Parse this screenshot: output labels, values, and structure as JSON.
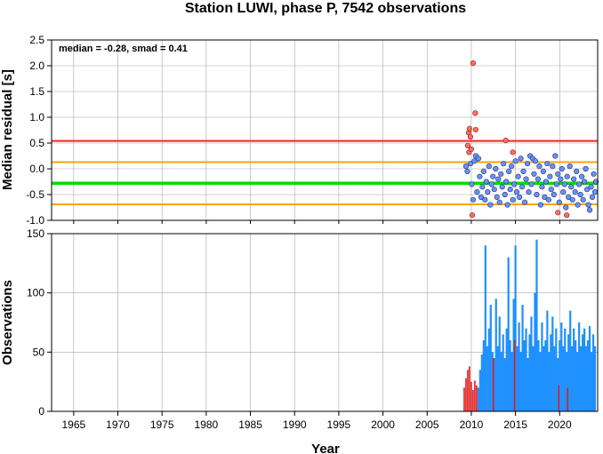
{
  "chart_data": [
    {
      "type": "scatter",
      "title": "Station LUWI, phase P, 7542 observations",
      "annotation": "median = -0.28, smad = 0.41",
      "xlabel": "",
      "ylabel": "Median residual [s]",
      "xlim": [
        1962.5,
        2024.3
      ],
      "ylim": [
        -1.0,
        2.5
      ],
      "yticks": [
        "2.5",
        "2.0",
        "1.5",
        "1.0",
        "0.5",
        "0.0",
        "-0.5",
        "-1.0"
      ],
      "ytick_values": [
        2.5,
        2.0,
        1.5,
        1.0,
        0.5,
        0.0,
        -0.5,
        -1.0
      ],
      "grid": true,
      "reference_lines": [
        {
          "name": "upper-threshold",
          "y": 0.54,
          "color": "#ff2020"
        },
        {
          "name": "upper-band",
          "y": 0.13,
          "color": "#ffa500"
        },
        {
          "name": "median",
          "y": -0.28,
          "color": "#00dd00"
        },
        {
          "name": "lower-band",
          "y": -0.69,
          "color": "#ffa500"
        }
      ],
      "colors": {
        "inlier": "#6495ed",
        "outlier": "#ff6f5e",
        "edge": "#2a2a8a"
      },
      "outliers": [
        {
          "x": 2009.6,
          "y": 0.45
        },
        {
          "x": 2009.7,
          "y": 0.7
        },
        {
          "x": 2009.8,
          "y": 0.78
        },
        {
          "x": 2009.9,
          "y": 0.62
        },
        {
          "x": 2009.75,
          "y": 0.32
        },
        {
          "x": 2010.0,
          "y": 0.38
        },
        {
          "x": 2010.2,
          "y": 2.05
        },
        {
          "x": 2010.45,
          "y": 1.08
        },
        {
          "x": 2010.5,
          "y": 0.76
        },
        {
          "x": 2010.1,
          "y": -0.9
        },
        {
          "x": 2013.9,
          "y": 0.55
        },
        {
          "x": 2014.7,
          "y": 0.32
        },
        {
          "x": 2019.8,
          "y": -0.85
        },
        {
          "x": 2020.8,
          "y": -0.9
        }
      ],
      "series": [
        {
          "name": "",
          "points": [
            {
              "x": 2009.4,
              "y": 0.05
            },
            {
              "x": 2009.55,
              "y": -0.05
            },
            {
              "x": 2009.9,
              "y": 0.1
            },
            {
              "x": 2010.05,
              "y": -0.3
            },
            {
              "x": 2010.2,
              "y": -0.6
            },
            {
              "x": 2010.35,
              "y": 0.15
            },
            {
              "x": 2010.5,
              "y": 0.25
            },
            {
              "x": 2010.65,
              "y": -0.45
            },
            {
              "x": 2010.8,
              "y": 0.2
            },
            {
              "x": 2010.95,
              "y": -0.15
            },
            {
              "x": 2011.1,
              "y": -0.55
            },
            {
              "x": 2011.25,
              "y": -0.35
            },
            {
              "x": 2011.4,
              "y": -0.05
            },
            {
              "x": 2011.55,
              "y": -0.6
            },
            {
              "x": 2011.7,
              "y": -0.25
            },
            {
              "x": 2011.85,
              "y": -0.45
            },
            {
              "x": 2012.0,
              "y": 0.05
            },
            {
              "x": 2012.15,
              "y": -0.7
            },
            {
              "x": 2012.3,
              "y": -0.3
            },
            {
              "x": 2012.45,
              "y": -0.15
            },
            {
              "x": 2012.6,
              "y": -0.4
            },
            {
              "x": 2012.75,
              "y": 0.0
            },
            {
              "x": 2012.9,
              "y": -0.55
            },
            {
              "x": 2013.05,
              "y": -0.2
            },
            {
              "x": 2013.2,
              "y": -0.65
            },
            {
              "x": 2013.35,
              "y": -0.1
            },
            {
              "x": 2013.5,
              "y": -0.35
            },
            {
              "x": 2013.65,
              "y": 0.1
            },
            {
              "x": 2013.8,
              "y": -0.5
            },
            {
              "x": 2013.95,
              "y": -0.25
            },
            {
              "x": 2014.1,
              "y": -0.7
            },
            {
              "x": 2014.25,
              "y": -0.05
            },
            {
              "x": 2014.4,
              "y": -0.4
            },
            {
              "x": 2014.55,
              "y": 0.05
            },
            {
              "x": 2014.7,
              "y": -0.6
            },
            {
              "x": 2014.85,
              "y": -0.3
            },
            {
              "x": 2015.0,
              "y": 0.15
            },
            {
              "x": 2015.15,
              "y": -0.45
            },
            {
              "x": 2015.3,
              "y": -0.15
            },
            {
              "x": 2015.45,
              "y": -0.55
            },
            {
              "x": 2015.6,
              "y": 0.2
            },
            {
              "x": 2015.75,
              "y": -0.35
            },
            {
              "x": 2015.9,
              "y": -0.05
            },
            {
              "x": 2016.05,
              "y": -0.65
            },
            {
              "x": 2016.2,
              "y": -0.2
            },
            {
              "x": 2016.35,
              "y": 0.1
            },
            {
              "x": 2016.5,
              "y": -0.45
            },
            {
              "x": 2016.65,
              "y": 0.25
            },
            {
              "x": 2016.8,
              "y": -0.3
            },
            {
              "x": 2016.95,
              "y": 0.2
            },
            {
              "x": 2017.1,
              "y": -0.1
            },
            {
              "x": 2017.25,
              "y": 0.15
            },
            {
              "x": 2017.4,
              "y": -0.5
            },
            {
              "x": 2017.55,
              "y": -0.2
            },
            {
              "x": 2017.7,
              "y": 0.05
            },
            {
              "x": 2017.85,
              "y": -0.7
            },
            {
              "x": 2018.0,
              "y": -0.35
            },
            {
              "x": 2018.15,
              "y": -0.05
            },
            {
              "x": 2018.3,
              "y": -0.55
            },
            {
              "x": 2018.45,
              "y": -0.25
            },
            {
              "x": 2018.6,
              "y": 0.1
            },
            {
              "x": 2018.75,
              "y": -0.6
            },
            {
              "x": 2018.9,
              "y": -0.15
            },
            {
              "x": 2019.05,
              "y": -0.4
            },
            {
              "x": 2019.2,
              "y": 0.05
            },
            {
              "x": 2019.35,
              "y": -0.5
            },
            {
              "x": 2019.5,
              "y": 0.25
            },
            {
              "x": 2019.65,
              "y": -0.3
            },
            {
              "x": 2019.8,
              "y": -0.1
            },
            {
              "x": 2019.95,
              "y": -0.65
            },
            {
              "x": 2020.1,
              "y": -0.2
            },
            {
              "x": 2020.25,
              "y": 0.0
            },
            {
              "x": 2020.4,
              "y": -0.45
            },
            {
              "x": 2020.55,
              "y": -0.3
            },
            {
              "x": 2020.7,
              "y": -0.75
            },
            {
              "x": 2020.85,
              "y": -0.15
            },
            {
              "x": 2021.0,
              "y": -0.55
            },
            {
              "x": 2021.15,
              "y": 0.05
            },
            {
              "x": 2021.3,
              "y": -0.35
            },
            {
              "x": 2021.45,
              "y": -0.6
            },
            {
              "x": 2021.6,
              "y": -0.2
            },
            {
              "x": 2021.75,
              "y": -0.45
            },
            {
              "x": 2021.9,
              "y": -0.05
            },
            {
              "x": 2022.05,
              "y": -0.7
            },
            {
              "x": 2022.2,
              "y": -0.3
            },
            {
              "x": 2022.35,
              "y": -0.5
            },
            {
              "x": 2022.5,
              "y": -0.15
            },
            {
              "x": 2022.65,
              "y": -0.6
            },
            {
              "x": 2022.8,
              "y": -0.25
            },
            {
              "x": 2022.95,
              "y": 0.0
            },
            {
              "x": 2023.1,
              "y": -0.4
            },
            {
              "x": 2023.25,
              "y": -0.7
            },
            {
              "x": 2023.4,
              "y": -0.8
            },
            {
              "x": 2023.55,
              "y": -0.35
            },
            {
              "x": 2023.7,
              "y": -0.55
            },
            {
              "x": 2023.85,
              "y": -0.1
            },
            {
              "x": 2024.0,
              "y": -0.45
            },
            {
              "x": 2024.1,
              "y": -0.25
            }
          ]
        }
      ]
    },
    {
      "type": "bar",
      "xlabel": "Year",
      "ylabel": "Observations",
      "xlim": [
        1962.5,
        2024.3
      ],
      "ylim": [
        0,
        150
      ],
      "xticks": [
        "1965",
        "1970",
        "1975",
        "1980",
        "1985",
        "1990",
        "1995",
        "2000",
        "2005",
        "2010",
        "2015",
        "2020"
      ],
      "xtick_values": [
        1965,
        1970,
        1975,
        1980,
        1985,
        1990,
        1995,
        2000,
        2005,
        2010,
        2015,
        2020
      ],
      "yticks": [
        "150",
        "100",
        "50",
        "0"
      ],
      "ytick_values": [
        150,
        100,
        50,
        0
      ],
      "grid": true,
      "colors": {
        "bars": "#1e90ff",
        "highlight": "#e31a1c"
      },
      "series": [
        {
          "name": "",
          "points": [
            {
              "x": 2010.8,
              "y": 20
            },
            {
              "x": 2011.0,
              "y": 35
            },
            {
              "x": 2011.2,
              "y": 48
            },
            {
              "x": 2011.4,
              "y": 60
            },
            {
              "x": 2011.6,
              "y": 140
            },
            {
              "x": 2011.8,
              "y": 55
            },
            {
              "x": 2012.0,
              "y": 70
            },
            {
              "x": 2012.2,
              "y": 90
            },
            {
              "x": 2012.4,
              "y": 50
            },
            {
              "x": 2012.6,
              "y": 45
            },
            {
              "x": 2012.8,
              "y": 95
            },
            {
              "x": 2013.0,
              "y": 55
            },
            {
              "x": 2013.2,
              "y": 80
            },
            {
              "x": 2013.4,
              "y": 50
            },
            {
              "x": 2013.6,
              "y": 65
            },
            {
              "x": 2013.8,
              "y": 45
            },
            {
              "x": 2014.0,
              "y": 70
            },
            {
              "x": 2014.2,
              "y": 130
            },
            {
              "x": 2014.4,
              "y": 60
            },
            {
              "x": 2014.6,
              "y": 50
            },
            {
              "x": 2014.8,
              "y": 95
            },
            {
              "x": 2015.0,
              "y": 140
            },
            {
              "x": 2015.2,
              "y": 55
            },
            {
              "x": 2015.4,
              "y": 75
            },
            {
              "x": 2015.6,
              "y": 50
            },
            {
              "x": 2015.8,
              "y": 90
            },
            {
              "x": 2016.0,
              "y": 60
            },
            {
              "x": 2016.2,
              "y": 70
            },
            {
              "x": 2016.4,
              "y": 45
            },
            {
              "x": 2016.6,
              "y": 65
            },
            {
              "x": 2016.8,
              "y": 80
            },
            {
              "x": 2017.0,
              "y": 55
            },
            {
              "x": 2017.2,
              "y": 100
            },
            {
              "x": 2017.4,
              "y": 145
            },
            {
              "x": 2017.6,
              "y": 60
            },
            {
              "x": 2017.8,
              "y": 50
            },
            {
              "x": 2018.0,
              "y": 75
            },
            {
              "x": 2018.2,
              "y": 55
            },
            {
              "x": 2018.4,
              "y": 60
            },
            {
              "x": 2018.6,
              "y": 85
            },
            {
              "x": 2018.8,
              "y": 50
            },
            {
              "x": 2019.0,
              "y": 65
            },
            {
              "x": 2019.2,
              "y": 80
            },
            {
              "x": 2019.4,
              "y": 55
            },
            {
              "x": 2019.6,
              "y": 70
            },
            {
              "x": 2019.8,
              "y": 45
            },
            {
              "x": 2020.0,
              "y": 60
            },
            {
              "x": 2020.2,
              "y": 75
            },
            {
              "x": 2020.4,
              "y": 55
            },
            {
              "x": 2020.6,
              "y": 70
            },
            {
              "x": 2020.8,
              "y": 50
            },
            {
              "x": 2021.0,
              "y": 65
            },
            {
              "x": 2021.2,
              "y": 85
            },
            {
              "x": 2021.4,
              "y": 55
            },
            {
              "x": 2021.6,
              "y": 70
            },
            {
              "x": 2021.8,
              "y": 60
            },
            {
              "x": 2022.0,
              "y": 50
            },
            {
              "x": 2022.2,
              "y": 75
            },
            {
              "x": 2022.4,
              "y": 55
            },
            {
              "x": 2022.6,
              "y": 65
            },
            {
              "x": 2022.8,
              "y": 70
            },
            {
              "x": 2023.0,
              "y": 55
            },
            {
              "x": 2023.2,
              "y": 60
            },
            {
              "x": 2023.4,
              "y": 72
            },
            {
              "x": 2023.6,
              "y": 50
            },
            {
              "x": 2023.8,
              "y": 65
            },
            {
              "x": 2024.0,
              "y": 55
            }
          ]
        },
        {
          "name": "",
          "points": [
            {
              "x": 2009.2,
              "y": 20
            },
            {
              "x": 2009.4,
              "y": 28
            },
            {
              "x": 2009.6,
              "y": 35
            },
            {
              "x": 2009.8,
              "y": 38
            },
            {
              "x": 2010.0,
              "y": 25
            },
            {
              "x": 2010.2,
              "y": 18
            },
            {
              "x": 2010.4,
              "y": 26
            },
            {
              "x": 2010.6,
              "y": 22
            },
            {
              "x": 2012.5,
              "y": 45
            },
            {
              "x": 2014.9,
              "y": 60
            },
            {
              "x": 2019.9,
              "y": 22
            },
            {
              "x": 2020.9,
              "y": 20
            }
          ]
        }
      ]
    }
  ]
}
